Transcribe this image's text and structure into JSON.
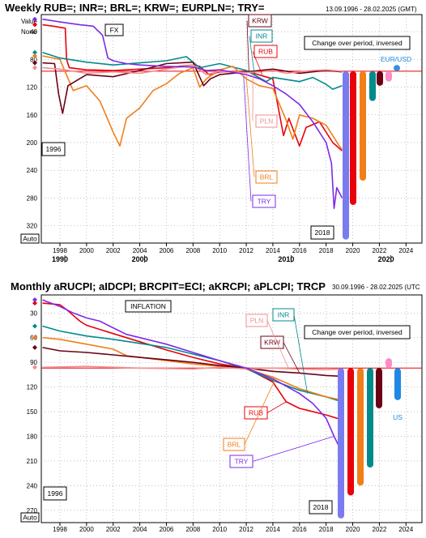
{
  "chart_data": [
    {
      "type": "line",
      "title": "Weekly RUB=; INR=; BRL=; KRW=; EURPLN=; TRY=",
      "date_range": "13.09.1996 - 28.02.2025 (GMT)",
      "panel_label": "FX",
      "note": "Change over period, inversed",
      "start_label": "1996",
      "end_label": "2018",
      "bottom_left": "Auto",
      "y_axis": {
        "top_labels": [
          "Value",
          "None"
        ],
        "inverted": true,
        "ticks": [
          40,
          80,
          120,
          160,
          200,
          240,
          280,
          320
        ],
        "ylim": [
          20,
          345
        ]
      },
      "x_axis": {
        "ticks": [
          1998,
          2000,
          2002,
          2004,
          2006,
          2008,
          2010,
          2012,
          2014,
          2016,
          2018,
          2020,
          2022,
          2024
        ],
        "xlim": [
          1996.6,
          2025.2
        ],
        "decade_labels": [
          {
            "x": 1998,
            "label": "1990"
          },
          {
            "x": 2004,
            "label": "2000"
          },
          {
            "x": 2015,
            "label": "2010"
          },
          {
            "x": 2022.5,
            "label": "2020"
          }
        ]
      },
      "reference_line": 97,
      "series": [
        {
          "name": "RUB",
          "color": "#e8000b",
          "x": [
            1996.7,
            1997.5,
            1998.4,
            1998.5,
            1998.7,
            2000,
            2002,
            2004,
            2006,
            2008,
            2008.5,
            2009.2,
            2010,
            2012,
            2014,
            2014.8,
            2015.2,
            2016,
            2016.5,
            2017.5,
            2018.5,
            2019.2
          ],
          "values": [
            30,
            32,
            35,
            80,
            92,
            95,
            96,
            94,
            92,
            88,
            90,
            102,
            98,
            97,
            108,
            190,
            165,
            205,
            178,
            170,
            200,
            212
          ]
        },
        {
          "name": "INR",
          "color": "#008b8b",
          "x": [
            1996.7,
            1998,
            2000,
            2002,
            2004,
            2006,
            2007.5,
            2008.5,
            2009,
            2010,
            2012,
            2013.5,
            2014,
            2016,
            2017,
            2018,
            2018.5,
            2019.2
          ],
          "values": [
            70,
            78,
            84,
            88,
            85,
            82,
            76,
            92,
            90,
            86,
            96,
            112,
            106,
            112,
            106,
            116,
            123,
            118
          ]
        },
        {
          "name": "BRL",
          "color": "#f07f1a",
          "x": [
            1996.7,
            1998,
            1999,
            2000,
            2001,
            2002,
            2002.5,
            2003,
            2004,
            2005,
            2006,
            2007,
            2008,
            2008.5,
            2009,
            2010,
            2011,
            2012,
            2013,
            2014,
            2015,
            2015.5,
            2016,
            2017,
            2018,
            2019,
            2019.2
          ],
          "values": [
            75,
            80,
            125,
            118,
            140,
            185,
            205,
            165,
            150,
            125,
            115,
            100,
            92,
            120,
            108,
            95,
            90,
            108,
            118,
            122,
            168,
            195,
            160,
            165,
            175,
            205,
            210
          ]
        },
        {
          "name": "KRW",
          "color": "#6b0016",
          "x": [
            1996.7,
            1997.6,
            1997.9,
            1998.2,
            1998.6,
            2000,
            2002,
            2004,
            2006,
            2008,
            2008.8,
            2009.3,
            2010,
            2012,
            2014,
            2016,
            2018,
            2019.2
          ],
          "values": [
            85,
            86,
            130,
            158,
            118,
            102,
            105,
            96,
            86,
            84,
            118,
            108,
            102,
            98,
            94,
            100,
            96,
            98
          ]
        },
        {
          "name": "PLN",
          "color": "#f28e8e",
          "x": [
            1996.7,
            1998,
            2000,
            2002,
            2004,
            2006,
            2008,
            2009,
            2010,
            2012,
            2013,
            2014,
            2015,
            2016,
            2017,
            2018,
            2019.2
          ],
          "values": [
            92,
            94,
            100,
            98,
            100,
            94,
            88,
            102,
            97,
            99,
            98,
            96,
            100,
            98,
            96,
            95,
            97
          ]
        },
        {
          "name": "TRY",
          "color": "#7d2ae8",
          "x": [
            1996.7,
            1998,
            1999.5,
            2000.5,
            2001.2,
            2001.6,
            2002,
            2003,
            2004,
            2006,
            2008,
            2009,
            2010,
            2012,
            2013,
            2014,
            2015,
            2016,
            2017,
            2018,
            2018.4,
            2018.6,
            2018.8,
            2019.2
          ],
          "values": [
            22,
            26,
            30,
            32,
            45,
            78,
            82,
            86,
            88,
            90,
            91,
            96,
            95,
            102,
            108,
            118,
            130,
            145,
            170,
            200,
            230,
            295,
            265,
            280
          ]
        }
      ],
      "change_bars": [
        {
          "name": "TRY",
          "color": "#7b7bf0",
          "from": 97,
          "to": 340
        },
        {
          "name": "RUB",
          "color": "#e8000b",
          "from": 97,
          "to": 290
        },
        {
          "name": "BRL",
          "color": "#f07f1a",
          "from": 97,
          "to": 255
        },
        {
          "name": "INR",
          "color": "#008b8b",
          "from": 97,
          "to": 140
        },
        {
          "name": "KRW",
          "color": "#6b0016",
          "from": 97,
          "to": 118
        },
        {
          "name": "PLN",
          "color": "#ff8cc6",
          "from": 97,
          "to": 112
        },
        {
          "name": "EUR/USD",
          "color": "#3a8fdb",
          "from": 97,
          "to": 88
        }
      ],
      "series_labels": [
        {
          "text": "KRW",
          "color": "#6b0016"
        },
        {
          "text": "INR",
          "color": "#008b8b"
        },
        {
          "text": "RUB",
          "color": "#e8000b"
        },
        {
          "text": "PLN",
          "color": "#f28e8e"
        },
        {
          "text": "BRL",
          "color": "#f07f1a"
        },
        {
          "text": "TRY",
          "color": "#7d2ae8"
        },
        {
          "text": "EUR/USD",
          "color": "#1e88e5"
        }
      ]
    },
    {
      "type": "line",
      "title": "Monthly aRUCPI; aIDCPI; BRCPIT=ECI; aKRCPI; aPLCPI; TRCP",
      "date_range": "30.09.1996 - 28.02.2025 (UTC",
      "panel_label": "INFLATION",
      "note": "Change over period, inversed",
      "start_label": "1996",
      "end_label": "2018",
      "bottom_left": "Auto",
      "y_axis": {
        "inverted": true,
        "ticks": [
          30,
          60,
          90,
          120,
          150,
          180,
          210,
          240,
          270
        ],
        "ylim": [
          10,
          285
        ]
      },
      "x_axis": {
        "ticks": [
          1998,
          2000,
          2002,
          2004,
          2006,
          2008,
          2010,
          2012,
          2014,
          2016,
          2018,
          2020,
          2022,
          2024
        ],
        "xlim": [
          1996.6,
          2025.2
        ]
      },
      "reference_line": 97,
      "series": [
        {
          "name": "RUB",
          "color": "#e8000b",
          "x": [
            1996.7,
            1998,
            1998.5,
            1999.5,
            2000,
            2002,
            2004,
            2006,
            2008,
            2010,
            2012,
            2014,
            2015,
            2016,
            2018,
            2019.2
          ],
          "values": [
            18,
            20,
            26,
            40,
            45,
            55,
            65,
            75,
            84,
            92,
            97,
            114,
            138,
            146,
            154,
            160
          ]
        },
        {
          "name": "INR",
          "color": "#008b8b",
          "x": [
            1996.7,
            1998,
            2000,
            2002,
            2004,
            2006,
            2008,
            2010,
            2012,
            2014,
            2016,
            2018,
            2019.2
          ],
          "values": [
            46,
            52,
            58,
            62,
            67,
            72,
            80,
            88,
            98,
            112,
            124,
            132,
            138
          ]
        },
        {
          "name": "BRL",
          "color": "#f07f1a",
          "x": [
            1996.7,
            1998,
            2000,
            2002,
            2003,
            2004,
            2006,
            2008,
            2010,
            2012,
            2014,
            2016,
            2018,
            2019.2
          ],
          "values": [
            60,
            62,
            68,
            74,
            82,
            84,
            88,
            92,
            95,
            98,
            108,
            122,
            132,
            136
          ]
        },
        {
          "name": "KRW",
          "color": "#6b0016",
          "x": [
            1996.7,
            1998,
            2000,
            2002,
            2004,
            2006,
            2008,
            2010,
            2012,
            2014,
            2016,
            2018,
            2019.2
          ],
          "values": [
            72,
            76,
            78,
            81,
            84,
            87,
            90,
            94,
            97,
            101,
            103,
            106,
            107
          ]
        },
        {
          "name": "PLN",
          "color": "#f28e8e",
          "x": [
            1996.7,
            2000,
            2004,
            2008,
            2010,
            2012,
            2014,
            2016,
            2018,
            2019.2
          ],
          "values": [
            96,
            95,
            97,
            98,
            96,
            98,
            97,
            98,
            99,
            98
          ]
        },
        {
          "name": "TRY",
          "color": "#7d2ae8",
          "x": [
            1996.7,
            1997,
            1998,
            1999,
            2000,
            2001,
            2002,
            2003,
            2004,
            2006,
            2008,
            2010,
            2012,
            2014,
            2016,
            2017,
            2018,
            2018.6,
            2019.2
          ],
          "values": [
            14,
            16,
            22,
            30,
            36,
            40,
            48,
            56,
            60,
            68,
            78,
            88,
            97,
            110,
            128,
            140,
            158,
            180,
            200
          ]
        }
      ],
      "change_bars": [
        {
          "name": "TRY",
          "color": "#7b7bf0",
          "from": 97,
          "to": 280
        },
        {
          "name": "RUB",
          "color": "#e8000b",
          "from": 97,
          "to": 252
        },
        {
          "name": "BRL",
          "color": "#f07f1a",
          "from": 97,
          "to": 240
        },
        {
          "name": "INR",
          "color": "#008b8b",
          "from": 97,
          "to": 218
        },
        {
          "name": "KRW",
          "color": "#6b0016",
          "from": 97,
          "to": 146
        },
        {
          "name": "PLN",
          "color": "#ff8cc6",
          "from": 97,
          "to": 85
        },
        {
          "name": "US",
          "color": "#1e88e5",
          "from": 97,
          "to": 136
        }
      ],
      "series_labels": [
        {
          "text": "PLN",
          "color": "#f28e8e"
        },
        {
          "text": "INR",
          "color": "#008b8b"
        },
        {
          "text": "KRW",
          "color": "#6b0016"
        },
        {
          "text": "RUB",
          "color": "#e8000b"
        },
        {
          "text": "BRL",
          "color": "#f07f1a"
        },
        {
          "text": "TRY",
          "color": "#7d2ae8"
        },
        {
          "text": "US",
          "color": "#1e88e5"
        }
      ]
    }
  ]
}
